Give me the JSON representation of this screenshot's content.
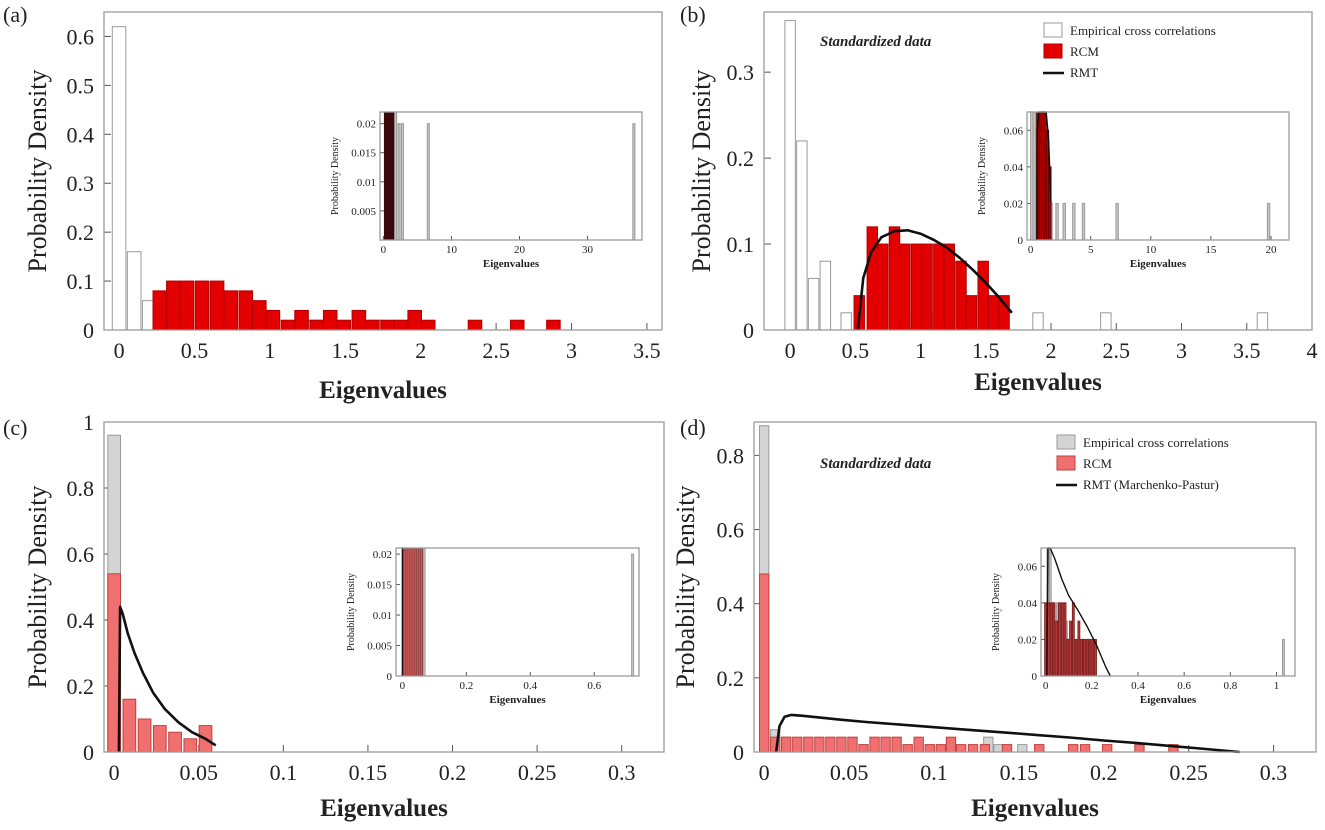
{
  "chart_data": [
    {
      "panel": "(a)",
      "type": "bar",
      "xlabel": "Eigenvalues",
      "ylabel": "Probability Density",
      "xlim": [
        -0.1,
        3.6
      ],
      "ylim": [
        0,
        0.65
      ],
      "xticks": [
        0,
        0.5,
        1,
        1.5,
        2,
        2.5,
        3,
        3.5
      ],
      "yticks": [
        0,
        0.1,
        0.2,
        0.3,
        0.4,
        0.5,
        0.6
      ],
      "xtick_labels": [
        "0",
        "0.5",
        "1",
        "1.5",
        "2",
        "2.5",
        "3",
        "3.5"
      ],
      "ytick_labels": [
        "0",
        "0.1",
        "0.2",
        "0.3",
        "0.4",
        "0.5",
        "0.6"
      ],
      "bar_width": 0.09,
      "series": [
        {
          "name": "",
          "color": "#ffffff",
          "stroke": "#9a9a9a",
          "x": [
            0,
            0.1,
            0.2,
            0.3,
            0.5,
            0.7,
            1.3,
            1.6,
            1.7
          ],
          "values": [
            0.62,
            0.16,
            0.06,
            0.04,
            0.02,
            0.02,
            0.02,
            0.02,
            0.02
          ]
        },
        {
          "name": "",
          "color": "#e30000",
          "stroke": "#b00000",
          "x": [
            0.27,
            0.36,
            0.45,
            0.55,
            0.65,
            0.74,
            0.84,
            0.93,
            1.02,
            1.12,
            1.21,
            1.31,
            1.4,
            1.49,
            1.59,
            1.68,
            1.78,
            1.87,
            1.96,
            2.05,
            2.36,
            2.64,
            2.88
          ],
          "values": [
            0.08,
            0.1,
            0.1,
            0.1,
            0.1,
            0.08,
            0.08,
            0.06,
            0.04,
            0.02,
            0.04,
            0.02,
            0.04,
            0.02,
            0.04,
            0.02,
            0.02,
            0.02,
            0.04,
            0.02,
            0.02,
            0.02,
            0.02
          ]
        }
      ],
      "inset": {
        "type": "bar",
        "xlabel": "Eigenvalues",
        "ylabel": "Probability Density",
        "xlim": [
          -0.5,
          38
        ],
        "ylim": [
          0,
          0.022
        ],
        "xticks": [
          0,
          10,
          20,
          30
        ],
        "yticks": [
          0.005,
          0.01,
          0.015,
          0.02
        ],
        "xtick_labels": [
          "0",
          "10",
          "20",
          "30"
        ],
        "ytick_labels": [
          "0.005",
          "0.01",
          "0.015",
          "0.02"
        ],
        "bar_width": 0.3,
        "series": [
          {
            "name": "",
            "color": "#3a0a0a",
            "stroke": "#3a0a0a",
            "x": [
              0.3,
              0.6,
              0.9,
              1.2,
              1.5
            ],
            "values": [
              0.022,
              0.022,
              0.022,
              0.022,
              0.022
            ]
          },
          {
            "name": "",
            "color": "#c8c8c8",
            "stroke": "#9a9a9a",
            "x": [
              1.8,
              2.3,
              2.8,
              6.6,
              36.8
            ],
            "values": [
              0.022,
              0.02,
              0.02,
              0.02,
              0.02
            ]
          }
        ]
      }
    },
    {
      "panel": "(b)",
      "type": "bar",
      "annotation": "Standardized data",
      "xlabel": "Eigenvalues",
      "ylabel": "Probability Density",
      "xlim": [
        -0.2,
        4
      ],
      "ylim": [
        0,
        0.37
      ],
      "xticks": [
        0,
        0.5,
        1,
        1.5,
        2,
        2.5,
        3,
        3.5,
        4
      ],
      "yticks": [
        0,
        0.1,
        0.2,
        0.3
      ],
      "xtick_labels": [
        "0",
        "0.5",
        "1",
        "1.5",
        "2",
        "2.5",
        "3",
        "3.5",
        "4"
      ],
      "ytick_labels": [
        "0",
        "0.1",
        "0.2",
        "0.3"
      ],
      "bar_width": 0.08,
      "series": [
        {
          "name": "Empirical cross correlations",
          "color": "#ffffff",
          "stroke": "#9a9a9a",
          "x": [
            0,
            0.09,
            0.18,
            0.27,
            0.43,
            0.68,
            0.88,
            1.05,
            1.4,
            1.9,
            2.42,
            3.62
          ],
          "values": [
            0.36,
            0.22,
            0.06,
            0.08,
            0.02,
            0.02,
            0.02,
            0.02,
            0.02,
            0.02,
            0.02,
            0.02
          ]
        },
        {
          "name": "RCM",
          "color": "#e30000",
          "stroke": "#b00000",
          "x": [
            0.53,
            0.63,
            0.71,
            0.8,
            0.88,
            0.97,
            1.05,
            1.14,
            1.22,
            1.31,
            1.39,
            1.48,
            1.56,
            1.64
          ],
          "values": [
            0.04,
            0.12,
            0.1,
            0.12,
            0.1,
            0.1,
            0.1,
            0.1,
            0.1,
            0.08,
            0.04,
            0.08,
            0.04,
            0.04
          ]
        }
      ],
      "curve": {
        "name": "RMT",
        "color": "#111111",
        "x": [
          0.52,
          0.56,
          0.62,
          0.7,
          0.8,
          0.9,
          1.0,
          1.1,
          1.2,
          1.3,
          1.4,
          1.5,
          1.6,
          1.7
        ],
        "y": [
          0.0,
          0.06,
          0.09,
          0.108,
          0.115,
          0.116,
          0.112,
          0.105,
          0.096,
          0.084,
          0.07,
          0.055,
          0.038,
          0.02
        ]
      },
      "legend_position": "top-right",
      "inset": {
        "type": "bar",
        "xlabel": "Eigenvalues",
        "ylabel": "Probability Density",
        "xlim": [
          -0.3,
          21.5
        ],
        "ylim": [
          0,
          0.07
        ],
        "xticks": [
          0,
          5,
          10,
          15,
          20
        ],
        "yticks": [
          0,
          0.02,
          0.04,
          0.06
        ],
        "xtick_labels": [
          "0",
          "5",
          "10",
          "15",
          "20"
        ],
        "ytick_labels": [
          "0",
          "0.02",
          "0.04",
          "0.06"
        ],
        "bar_width": 0.2,
        "series": [
          {
            "name": "",
            "color": "#c8c8c8",
            "stroke": "#9a9a9a",
            "x": [
              0.1,
              0.3,
              0.5,
              1.7,
              2.2,
              2.8,
              3.6,
              4.4,
              7.2,
              19.8
            ],
            "values": [
              0.07,
              0.07,
              0.06,
              0.02,
              0.02,
              0.02,
              0.02,
              0.02,
              0.02,
              0.02
            ]
          },
          {
            "name": "",
            "color": "#b30000",
            "stroke": "#6a0000",
            "x": [
              0.6,
              0.8,
              1.0,
              1.2,
              1.4,
              1.6
            ],
            "values": [
              0.07,
              0.07,
              0.07,
              0.07,
              0.06,
              0.04
            ]
          }
        ],
        "curve": {
          "color": "#111111",
          "x": [
            0.52,
            0.55,
            0.7,
            0.9,
            1.1,
            1.3,
            1.5,
            1.7
          ],
          "y": [
            0.0,
            0.06,
            0.07,
            0.07,
            0.07,
            0.07,
            0.055,
            0.02
          ]
        }
      }
    },
    {
      "panel": "(c)",
      "type": "bar",
      "xlabel": "Eigenvalues",
      "ylabel": "Probability Density",
      "xlim": [
        -0.006,
        0.325
      ],
      "ylim": [
        0,
        1
      ],
      "xticks": [
        0,
        0.05,
        0.1,
        0.15,
        0.2,
        0.25,
        0.3
      ],
      "yticks": [
        0,
        0.2,
        0.4,
        0.6,
        0.8,
        1
      ],
      "xtick_labels": [
        "0",
        "0.05",
        "0.1",
        "0.15",
        "0.2",
        "0.25",
        "0.3"
      ],
      "ytick_labels": [
        "0",
        "0.2",
        "0.4",
        "0.6",
        "0.8",
        "1"
      ],
      "bar_width": 0.0075,
      "series": [
        {
          "name": "",
          "color": "#d4d4d4",
          "stroke": "#9a9a9a",
          "x": [
            0.0
          ],
          "values": [
            0.96
          ]
        },
        {
          "name": "",
          "color": "#f07070",
          "stroke": "#c04040",
          "x": [
            0.0,
            0.009,
            0.018,
            0.027,
            0.036,
            0.045,
            0.054
          ],
          "values": [
            0.54,
            0.16,
            0.1,
            0.08,
            0.06,
            0.04,
            0.08
          ]
        }
      ],
      "curve": {
        "name": "",
        "color": "#111111",
        "x": [
          0.0028,
          0.0035,
          0.005,
          0.008,
          0.012,
          0.017,
          0.023,
          0.03,
          0.038,
          0.046,
          0.054,
          0.06
        ],
        "y": [
          0.0,
          0.44,
          0.42,
          0.36,
          0.3,
          0.24,
          0.18,
          0.13,
          0.09,
          0.06,
          0.04,
          0.02
        ]
      },
      "inset": {
        "type": "bar",
        "xlabel": "Eigenvalues",
        "ylabel": "Probability Density",
        "xlim": [
          -0.02,
          0.74
        ],
        "ylim": [
          0,
          0.021
        ],
        "xticks": [
          0,
          0.2,
          0.4,
          0.6
        ],
        "yticks": [
          0,
          0.005,
          0.01,
          0.015,
          0.02
        ],
        "xtick_labels": [
          "0",
          "0.2",
          "0.4",
          "0.6"
        ],
        "ytick_labels": [
          "0",
          "0.005",
          "0.01",
          "0.015",
          "0.02"
        ],
        "bar_width": 0.006,
        "series": [
          {
            "name": "",
            "color": "#c8c8c8",
            "stroke": "#9a9a9a",
            "x": [
              0.068,
              0.72
            ],
            "values": [
              0.021,
              0.02
            ]
          },
          {
            "name": "",
            "color": "#e06060",
            "stroke": "#904040",
            "x": [
              0.006,
              0.012,
              0.018,
              0.024,
              0.03,
              0.036,
              0.042,
              0.048,
              0.054,
              0.06
            ],
            "values": [
              0.021,
              0.021,
              0.021,
              0.021,
              0.021,
              0.021,
              0.021,
              0.021,
              0.021,
              0.021
            ]
          }
        ],
        "curve": {
          "color": "#111111",
          "x": [
            0.0,
            0.0,
            0.002
          ],
          "y": [
            0.0,
            0.021,
            0.021
          ]
        }
      }
    },
    {
      "panel": "(d)",
      "type": "bar",
      "annotation": "Standardized data",
      "xlabel": "Eigenvalues",
      "ylabel": "Probability Density",
      "xlim": [
        -0.006,
        0.325
      ],
      "ylim": [
        0,
        0.89
      ],
      "xticks": [
        0,
        0.05,
        0.1,
        0.15,
        0.2,
        0.25,
        0.3
      ],
      "yticks": [
        0,
        0.2,
        0.4,
        0.6,
        0.8
      ],
      "xtick_labels": [
        "0",
        "0.05",
        "0.1",
        "0.15",
        "0.2",
        "0.25",
        "0.3"
      ],
      "ytick_labels": [
        "0",
        "0.2",
        "0.4",
        "0.6",
        "0.8"
      ],
      "bar_width": 0.0055,
      "series": [
        {
          "name": "Empirical cross correlations",
          "color": "#d4d4d4",
          "stroke": "#9a9a9a",
          "x": [
            0.0,
            0.0065,
            0.013,
            0.132,
            0.138,
            0.152
          ],
          "values": [
            0.88,
            0.06,
            0.04,
            0.04,
            0.02,
            0.02
          ]
        },
        {
          "name": "RCM",
          "color": "#f07070",
          "stroke": "#c04040",
          "x": [
            0.0,
            0.0065,
            0.013,
            0.0195,
            0.026,
            0.0325,
            0.039,
            0.0455,
            0.052,
            0.0585,
            0.065,
            0.0715,
            0.078,
            0.0845,
            0.091,
            0.0975,
            0.104,
            0.11,
            0.116,
            0.123,
            0.13,
            0.143,
            0.162,
            0.182,
            0.189,
            0.202,
            0.221,
            0.241
          ],
          "values": [
            0.48,
            0.04,
            0.04,
            0.04,
            0.04,
            0.04,
            0.04,
            0.04,
            0.04,
            0.02,
            0.04,
            0.04,
            0.04,
            0.02,
            0.04,
            0.02,
            0.02,
            0.04,
            0.02,
            0.02,
            0.02,
            0.02,
            0.02,
            0.02,
            0.02,
            0.02,
            0.02,
            0.02
          ]
        }
      ],
      "curve": {
        "name": "RMT (Marchenko-Pastur)",
        "color": "#111111",
        "x": [
          0.007,
          0.009,
          0.012,
          0.016,
          0.022,
          0.03,
          0.045,
          0.06,
          0.08,
          0.1,
          0.12,
          0.14,
          0.16,
          0.18,
          0.2,
          0.22,
          0.24,
          0.26,
          0.28
        ],
        "y": [
          0.0,
          0.07,
          0.095,
          0.1,
          0.098,
          0.094,
          0.087,
          0.081,
          0.074,
          0.067,
          0.06,
          0.053,
          0.046,
          0.039,
          0.031,
          0.024,
          0.016,
          0.008,
          0.0
        ]
      },
      "legend_position": "top-right",
      "inset": {
        "type": "bar",
        "xlabel": "Eigenvalues",
        "ylabel": "Probability Density",
        "xlim": [
          -0.02,
          1.08
        ],
        "ylim": [
          0,
          0.07
        ],
        "xticks": [
          0,
          0.2,
          0.4,
          0.6,
          0.8,
          1
        ],
        "yticks": [
          0,
          0.02,
          0.04,
          0.06
        ],
        "xtick_labels": [
          "0",
          "0.2",
          "0.4",
          "0.6",
          "0.8",
          "1"
        ],
        "ytick_labels": [
          "0",
          "0.02",
          "0.04",
          "0.06"
        ],
        "bar_width": 0.008,
        "series": [
          {
            "name": "",
            "color": "#c8c8c8",
            "stroke": "#9a9a9a",
            "x": [
              0.01,
              0.02,
              0.03,
              0.05,
              0.09,
              0.12,
              0.15,
              0.17,
              1.03
            ],
            "values": [
              0.07,
              0.07,
              0.04,
              0.04,
              0.03,
              0.02,
              0.02,
              0.02,
              0.02
            ]
          },
          {
            "name": "",
            "color": "#c04040",
            "stroke": "#802020",
            "x": [
              0.0,
              0.012,
              0.024,
              0.036,
              0.048,
              0.06,
              0.072,
              0.084,
              0.096,
              0.108,
              0.12,
              0.132,
              0.144,
              0.156,
              0.168,
              0.18,
              0.192,
              0.204,
              0.216
            ],
            "values": [
              0.04,
              0.04,
              0.04,
              0.04,
              0.03,
              0.04,
              0.04,
              0.04,
              0.02,
              0.03,
              0.04,
              0.02,
              0.03,
              0.02,
              0.02,
              0.02,
              0.02,
              0.02,
              0.02
            ]
          }
        ],
        "curve": {
          "color": "#111111",
          "x": [
            0.005,
            0.01,
            0.02,
            0.04,
            0.07,
            0.1,
            0.14,
            0.18,
            0.22,
            0.26,
            0.28
          ],
          "y": [
            0.0,
            0.07,
            0.07,
            0.064,
            0.053,
            0.044,
            0.036,
            0.027,
            0.017,
            0.005,
            0.0
          ]
        }
      }
    }
  ]
}
